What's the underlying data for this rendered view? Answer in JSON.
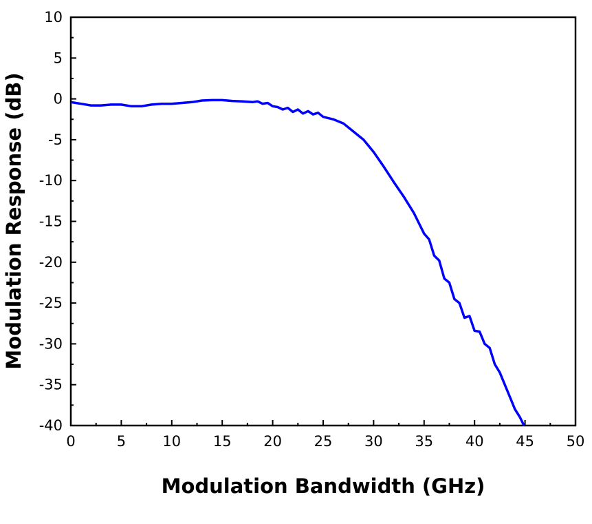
{
  "chart_data": {
    "type": "line",
    "title": "",
    "xlabel": "Modulation Bandwidth (GHz)",
    "ylabel": "Modulation Response (dB)",
    "xlim": [
      0,
      50
    ],
    "ylim": [
      -40,
      10
    ],
    "xticks": [
      "0",
      "5",
      "10",
      "15",
      "20",
      "25",
      "30",
      "35",
      "40",
      "45",
      "50"
    ],
    "yticks": [
      "10",
      "5",
      "0",
      "-5",
      "-10",
      "-15",
      "-20",
      "-25",
      "-30",
      "-35",
      "-40"
    ],
    "grid": false,
    "series": [
      {
        "name": "Modulation Response",
        "color": "#0000ff",
        "x": [
          0,
          0.5,
          1,
          2,
          3,
          4,
          5,
          6,
          7,
          8,
          9,
          10,
          11,
          12,
          13,
          14,
          15,
          16,
          17,
          18,
          18.5,
          19,
          19.5,
          20,
          20.5,
          21,
          21.5,
          22,
          22.5,
          23,
          23.5,
          24,
          24.5,
          25,
          26,
          27,
          28,
          29,
          30,
          31,
          32,
          33,
          34,
          35,
          35.5,
          36,
          36.5,
          37,
          37.5,
          38,
          38.5,
          39,
          39.5,
          40,
          40.5,
          41,
          41.5,
          42,
          42.5,
          43,
          43.5,
          44,
          44.5,
          44.9
        ],
        "y": [
          -0.4,
          -0.5,
          -0.6,
          -0.8,
          -0.8,
          -0.7,
          -0.7,
          -0.9,
          -0.9,
          -0.7,
          -0.6,
          -0.6,
          -0.5,
          -0.4,
          -0.2,
          -0.15,
          -0.15,
          -0.25,
          -0.3,
          -0.4,
          -0.3,
          -0.6,
          -0.5,
          -0.9,
          -1.0,
          -1.3,
          -1.1,
          -1.6,
          -1.3,
          -1.8,
          -1.5,
          -1.9,
          -1.7,
          -2.2,
          -2.5,
          -3.0,
          -4.0,
          -5.0,
          -6.5,
          -8.3,
          -10.2,
          -12.0,
          -14.0,
          -16.5,
          -17.2,
          -19.2,
          -19.8,
          -22.0,
          -22.5,
          -24.5,
          -25.0,
          -26.8,
          -26.6,
          -28.4,
          -28.5,
          -30.0,
          -30.5,
          -32.5,
          -33.5,
          -35.0,
          -36.5,
          -38.0,
          -39.0,
          -40.0
        ]
      }
    ]
  }
}
